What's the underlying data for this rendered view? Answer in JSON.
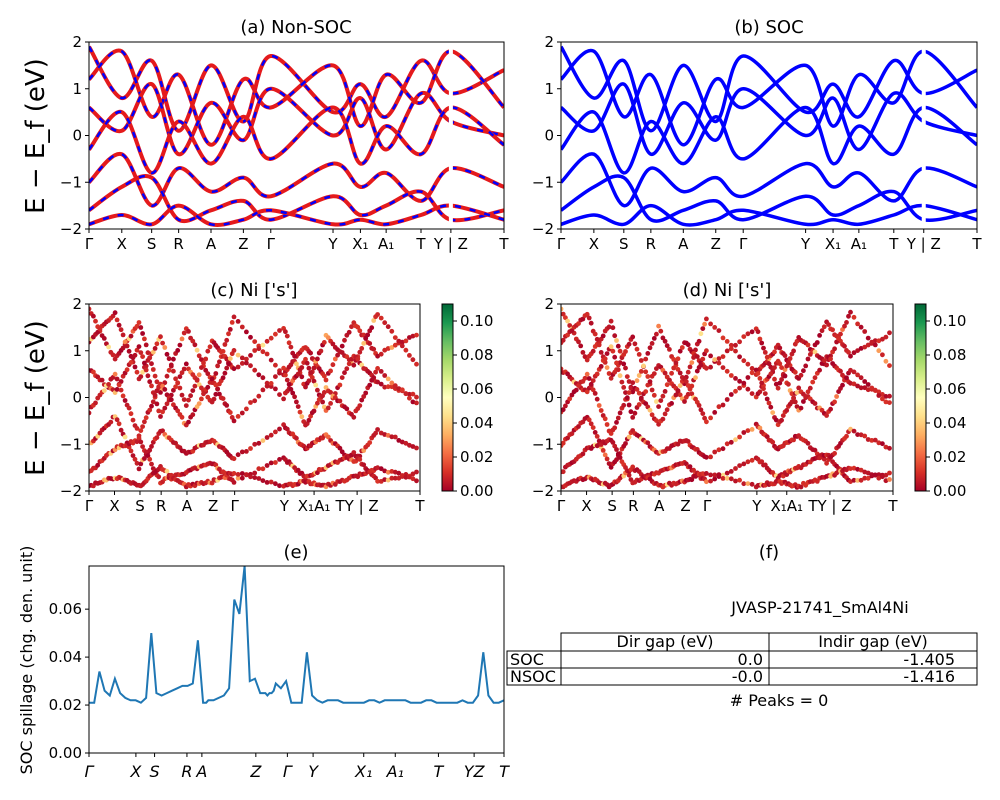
{
  "figure": {
    "panel_a_title": "(a) Non-SOC",
    "panel_b_title": "(b) SOC",
    "panel_c_title": "(c)  Ni ['s']",
    "panel_d_title": "(d) Ni ['s']",
    "panel_e_title": "(e)",
    "panel_f_title": "(f)",
    "band_ylabel": "E − E_f (eV)",
    "spillage_ylabel": "SOC spillage (chg. den. unit)"
  },
  "colors": {
    "nonsoc_line": "#e41a1c",
    "nonsoc_dash": "#0000ff",
    "soc_line": "#0000ff",
    "spillage_line": "#1f77b4",
    "colormap": [
      "#a50026",
      "#d73027",
      "#f46d43",
      "#fdae61",
      "#fee08b",
      "#ffffbf",
      "#d9ef8b",
      "#a6d96a",
      "#66bd63",
      "#1a9850",
      "#006837"
    ]
  },
  "chart_data": [
    {
      "type": "line",
      "panel": "a",
      "title": "(a) Non-SOC",
      "ylabel": "E − E_f (eV)",
      "ylim": [
        -2,
        2
      ],
      "yticks": [
        "−2",
        "−1",
        "0",
        "1",
        "2"
      ],
      "xticks": [
        "Γ",
        "X",
        "S",
        "R",
        "A",
        "Z",
        "Γ",
        "Y",
        "X₁",
        "A₁",
        "T",
        "Y | Z",
        "T"
      ],
      "series": [
        {
          "values": [
            1.9,
            0.8,
            1.6,
            0.1,
            1.5,
            0.3,
            1.7,
            0.5,
            1.1,
            0.4,
            1.6,
            0.9,
            1.4
          ]
        },
        {
          "values": [
            1.2,
            1.8,
            0.4,
            1.3,
            -0.2,
            1.2,
            0.6,
            1.5,
            0.2,
            1.3,
            0.7,
            1.8,
            0.6
          ]
        },
        {
          "values": [
            0.6,
            0.1,
            1.1,
            -0.4,
            0.7,
            -0.1,
            1.0,
            0.0,
            0.8,
            -0.3,
            0.9,
            0.3,
            0.0
          ]
        },
        {
          "values": [
            -0.3,
            0.5,
            -0.8,
            0.3,
            -0.6,
            0.4,
            -0.5,
            0.6,
            -0.6,
            0.2,
            -0.4,
            0.6,
            -0.2
          ]
        },
        {
          "values": [
            -1.0,
            -0.4,
            -1.5,
            -0.7,
            -1.2,
            -0.9,
            -1.3,
            -0.6,
            -1.1,
            -0.8,
            -1.4,
            -0.7,
            -1.1
          ]
        },
        {
          "values": [
            -1.6,
            -1.1,
            -0.9,
            -1.8,
            -1.6,
            -1.4,
            -1.8,
            -1.3,
            -1.7,
            -1.5,
            -1.2,
            -1.8,
            -1.6
          ]
        },
        {
          "values": [
            -1.9,
            -1.7,
            -1.9,
            -1.5,
            -1.9,
            -1.8,
            -1.6,
            -1.9,
            -1.8,
            -1.9,
            -1.7,
            -1.5,
            -1.8
          ]
        }
      ]
    },
    {
      "type": "line",
      "panel": "b",
      "title": "(b) SOC",
      "ylim": [
        -2,
        2
      ],
      "yticks": [
        "−2",
        "−1",
        "0",
        "1",
        "2"
      ],
      "xticks": [
        "Γ",
        "X",
        "S",
        "R",
        "A",
        "Z",
        "Γ",
        "Y",
        "X₁",
        "A₁",
        "T",
        "Y | Z",
        "T"
      ],
      "series": [
        {
          "values": [
            1.9,
            0.8,
            1.6,
            0.1,
            1.5,
            0.3,
            1.7,
            0.5,
            1.1,
            0.4,
            1.6,
            0.9,
            1.4
          ]
        },
        {
          "values": [
            1.2,
            1.8,
            0.4,
            1.3,
            -0.2,
            1.2,
            0.6,
            1.5,
            0.2,
            1.3,
            0.7,
            1.8,
            0.6
          ]
        },
        {
          "values": [
            0.6,
            0.1,
            1.1,
            -0.4,
            0.7,
            -0.1,
            1.0,
            0.0,
            0.8,
            -0.3,
            0.9,
            0.3,
            0.0
          ]
        },
        {
          "values": [
            -0.3,
            0.5,
            -0.8,
            0.3,
            -0.6,
            0.4,
            -0.5,
            0.6,
            -0.6,
            0.2,
            -0.4,
            0.6,
            -0.2
          ]
        },
        {
          "values": [
            -1.0,
            -0.4,
            -1.5,
            -0.7,
            -1.2,
            -0.9,
            -1.3,
            -0.6,
            -1.1,
            -0.8,
            -1.4,
            -0.7,
            -1.1
          ]
        },
        {
          "values": [
            -1.6,
            -1.1,
            -0.9,
            -1.8,
            -1.6,
            -1.4,
            -1.8,
            -1.3,
            -1.7,
            -1.5,
            -1.2,
            -1.8,
            -1.6
          ]
        },
        {
          "values": [
            -1.9,
            -1.7,
            -1.9,
            -1.5,
            -1.9,
            -1.8,
            -1.6,
            -1.9,
            -1.8,
            -1.9,
            -1.7,
            -1.5,
            -1.8
          ]
        }
      ]
    },
    {
      "type": "scatter",
      "panel": "c",
      "title": "(c)  Ni ['s']",
      "ylabel": "E − E_f (eV)",
      "ylim": [
        -2,
        2
      ],
      "yticks": [
        "−2",
        "−1",
        "0",
        "1",
        "2"
      ],
      "xticks": [
        "Γ",
        "X",
        "S",
        "R",
        "A",
        "Z",
        "Γ",
        "Y",
        "X₁A₁",
        "TY | Z",
        "T"
      ],
      "colorbar": {
        "range": [
          0,
          0.1
        ],
        "ticks": [
          "0.00",
          "0.02",
          "0.04",
          "0.06",
          "0.08",
          "0.10"
        ]
      }
    },
    {
      "type": "scatter",
      "panel": "d",
      "title": "(d) Ni ['s']",
      "ylim": [
        -2,
        2
      ],
      "yticks": [
        "−2",
        "−1",
        "0",
        "1",
        "2"
      ],
      "xticks": [
        "Γ",
        "X",
        "S",
        "R",
        "A",
        "Z",
        "Γ",
        "Y",
        "X₁A₁",
        "TY | Z",
        "T"
      ],
      "colorbar": {
        "range": [
          0,
          0.1
        ],
        "ticks": [
          "0.00",
          "0.02",
          "0.04",
          "0.06",
          "0.08",
          "0.10"
        ]
      }
    },
    {
      "type": "line",
      "panel": "e",
      "title": "(e)",
      "ylabel": "SOC spillage (chg. den. unit)",
      "ylim": [
        0,
        0.078
      ],
      "yticks": [
        "0.00",
        "0.02",
        "0.04",
        "0.06"
      ],
      "xticks": [
        "Γ",
        "X",
        "S",
        "R",
        "A",
        "Z",
        "Γ",
        "Y",
        "X₁",
        "A₁",
        "T",
        "YZ",
        "T"
      ],
      "x": [
        0,
        0.5,
        1.0,
        1.5,
        2.0,
        2.5,
        3.0,
        3.5,
        4.0,
        4.5,
        5.0,
        5.5,
        6.0,
        6.5,
        7.0,
        7.5,
        8.0,
        8.5,
        9.0,
        9.5,
        10.0,
        10.5,
        11.0,
        11.3,
        11.5,
        11.7,
        12.0,
        12.5,
        13.0,
        13.5,
        14.0,
        14.5,
        15.0,
        15.5,
        16.0,
        16.5,
        17.0,
        17.2,
        17.4,
        17.6,
        17.8,
        18.0,
        18.5,
        19.0,
        19.5,
        20.0,
        20.5,
        21.0,
        21.5,
        22.0,
        22.5,
        23.0,
        23.5,
        24.0,
        24.5,
        25.0,
        25.5,
        26.0,
        26.5,
        27.0,
        27.5,
        28.0,
        28.5,
        29.0,
        29.5,
        30.0,
        30.5,
        31.0,
        31.5,
        32.0,
        32.5,
        33.0,
        33.5,
        34.0,
        34.5,
        35.0,
        35.5,
        36.0,
        36.5,
        37.0,
        37.5,
        38.0,
        38.5,
        39.0,
        39.5,
        40.0
      ],
      "values": [
        0.021,
        0.021,
        0.034,
        0.026,
        0.024,
        0.031,
        0.025,
        0.023,
        0.022,
        0.022,
        0.021,
        0.023,
        0.05,
        0.025,
        0.024,
        0.025,
        0.026,
        0.027,
        0.028,
        0.028,
        0.029,
        0.047,
        0.021,
        0.021,
        0.022,
        0.022,
        0.022,
        0.023,
        0.024,
        0.027,
        0.064,
        0.058,
        0.078,
        0.03,
        0.031,
        0.025,
        0.025,
        0.024,
        0.025,
        0.025,
        0.026,
        0.029,
        0.027,
        0.03,
        0.021,
        0.021,
        0.021,
        0.042,
        0.024,
        0.022,
        0.021,
        0.022,
        0.022,
        0.022,
        0.021,
        0.021,
        0.021,
        0.021,
        0.021,
        0.022,
        0.022,
        0.021,
        0.022,
        0.022,
        0.022,
        0.022,
        0.022,
        0.021,
        0.021,
        0.021,
        0.022,
        0.022,
        0.021,
        0.021,
        0.021,
        0.021,
        0.021,
        0.022,
        0.021,
        0.021,
        0.024,
        0.042,
        0.024,
        0.021,
        0.021,
        0.022
      ]
    },
    {
      "type": "table",
      "panel": "f",
      "title": "(f)",
      "material": "JVASP-21741_SmAl4Ni",
      "columns": [
        "Dir gap (eV)",
        "Indir gap (eV)"
      ],
      "rows": [
        {
          "label": "SOC",
          "dir": "0.0",
          "indir": "-1.405"
        },
        {
          "label": "NSOC",
          "dir": "-0.0",
          "indir": "-1.416"
        }
      ],
      "peaks": "# Peaks = 0"
    }
  ]
}
